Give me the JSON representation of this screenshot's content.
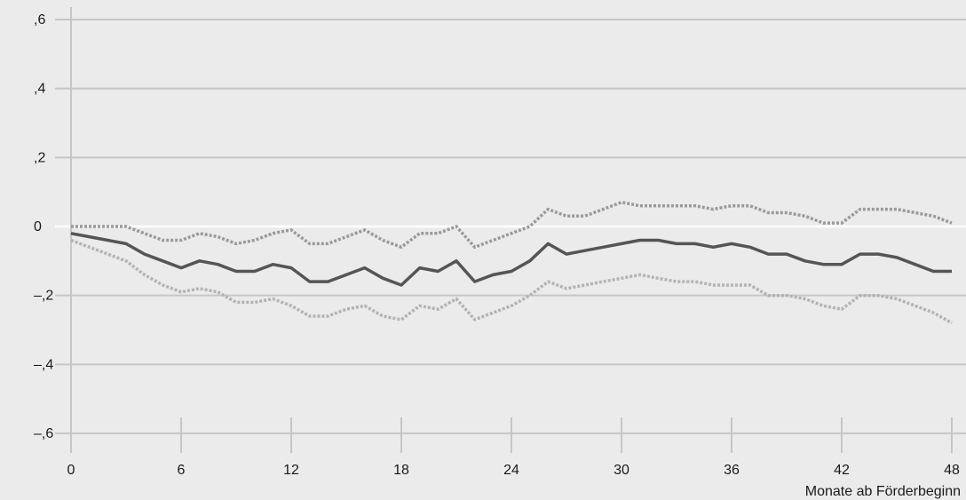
{
  "chart_data": {
    "type": "line",
    "xlabel": "Monate ab Förderbeginn",
    "ylabel": "",
    "xlim": [
      0,
      48
    ],
    "ylim": [
      -0.6,
      0.6
    ],
    "x_ticks": [
      0,
      6,
      12,
      18,
      24,
      30,
      36,
      42,
      48
    ],
    "x_tick_labels": [
      "0",
      "6",
      "12",
      "18",
      "24",
      "30",
      "36",
      "42",
      "48"
    ],
    "y_ticks": [
      0.6,
      0.4,
      0.2,
      0,
      -0.2,
      -0.4,
      -0.6
    ],
    "y_tick_labels": [
      ",6",
      ",4",
      ",2",
      "0",
      "–,2",
      "–,4",
      "–,6"
    ],
    "grid": true,
    "zero_line": true,
    "x": [
      0,
      1,
      2,
      3,
      4,
      5,
      6,
      7,
      8,
      9,
      10,
      11,
      12,
      13,
      14,
      15,
      16,
      17,
      18,
      19,
      20,
      21,
      22,
      23,
      24,
      25,
      26,
      27,
      28,
      29,
      30,
      31,
      32,
      33,
      34,
      35,
      36,
      37,
      38,
      39,
      40,
      41,
      42,
      43,
      44,
      45,
      46,
      47,
      48
    ],
    "series": [
      {
        "style": "solid",
        "color": "#555555",
        "values": [
          -0.02,
          -0.03,
          -0.04,
          -0.05,
          -0.08,
          -0.1,
          -0.12,
          -0.1,
          -0.11,
          -0.13,
          -0.13,
          -0.11,
          -0.12,
          -0.16,
          -0.16,
          -0.14,
          -0.12,
          -0.15,
          -0.17,
          -0.12,
          -0.13,
          -0.1,
          -0.16,
          -0.14,
          -0.13,
          -0.1,
          -0.05,
          -0.08,
          -0.07,
          -0.06,
          -0.05,
          -0.04,
          -0.04,
          -0.05,
          -0.05,
          -0.06,
          -0.05,
          -0.06,
          -0.08,
          -0.08,
          -0.1,
          -0.11,
          -0.11,
          -0.08,
          -0.08,
          -0.09,
          -0.11,
          -0.13,
          -0.13
        ]
      },
      {
        "style": "dotted",
        "color": "#9a9a9a",
        "values": [
          0.0,
          0.0,
          0.0,
          0.0,
          -0.02,
          -0.04,
          -0.04,
          -0.02,
          -0.03,
          -0.05,
          -0.04,
          -0.02,
          -0.01,
          -0.05,
          -0.05,
          -0.03,
          -0.01,
          -0.04,
          -0.06,
          -0.02,
          -0.02,
          0.0,
          -0.06,
          -0.04,
          -0.02,
          0.0,
          0.05,
          0.03,
          0.03,
          0.05,
          0.07,
          0.06,
          0.06,
          0.06,
          0.06,
          0.05,
          0.06,
          0.06,
          0.04,
          0.04,
          0.03,
          0.01,
          0.01,
          0.05,
          0.05,
          0.05,
          0.04,
          0.03,
          0.01
        ]
      },
      {
        "style": "dotted",
        "color": "#b3b3b3",
        "values": [
          -0.04,
          -0.06,
          -0.08,
          -0.1,
          -0.14,
          -0.17,
          -0.19,
          -0.18,
          -0.19,
          -0.22,
          -0.22,
          -0.21,
          -0.23,
          -0.26,
          -0.26,
          -0.24,
          -0.23,
          -0.26,
          -0.27,
          -0.23,
          -0.24,
          -0.21,
          -0.27,
          -0.25,
          -0.23,
          -0.2,
          -0.16,
          -0.18,
          -0.17,
          -0.16,
          -0.15,
          -0.14,
          -0.15,
          -0.16,
          -0.16,
          -0.17,
          -0.17,
          -0.17,
          -0.2,
          -0.2,
          -0.21,
          -0.23,
          -0.24,
          -0.2,
          -0.2,
          -0.21,
          -0.23,
          -0.25,
          -0.28
        ]
      }
    ]
  }
}
